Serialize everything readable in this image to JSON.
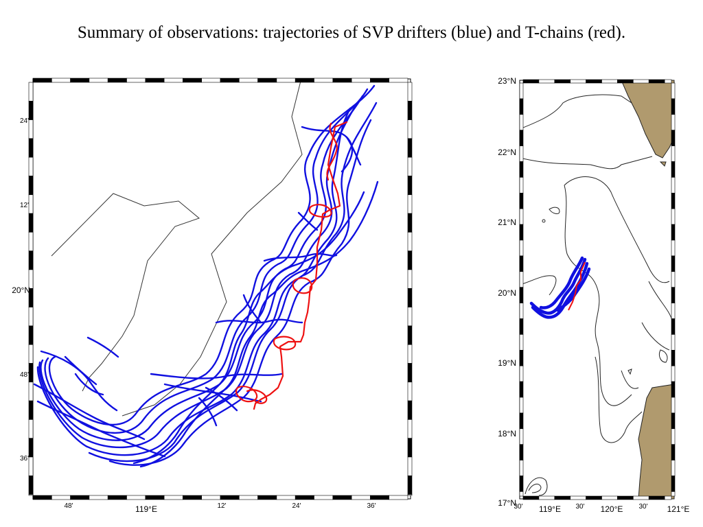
{
  "slide": {
    "title": "Summary of observations: trajectories of SVP drifters (blue) and T-chains (red)."
  },
  "left_map": {
    "y_ticks": [
      "24'",
      "12'",
      "20°N",
      "48'",
      "36'"
    ],
    "x_ticks": [
      "48'",
      "119°E",
      "12'",
      "24'",
      "36'"
    ]
  },
  "right_map": {
    "y_ticks": [
      "23°N",
      "22°N",
      "21°N",
      "20°N",
      "19°N",
      "18°N",
      "17°N"
    ],
    "x_ticks": [
      "30'",
      "119°E",
      "30'",
      "120°E",
      "30'",
      "121°E"
    ]
  },
  "colors": {
    "svp_drifters": "#1010e0",
    "t_chains": "#ee1111",
    "land": "#b09a6e",
    "contour": "#222222"
  }
}
